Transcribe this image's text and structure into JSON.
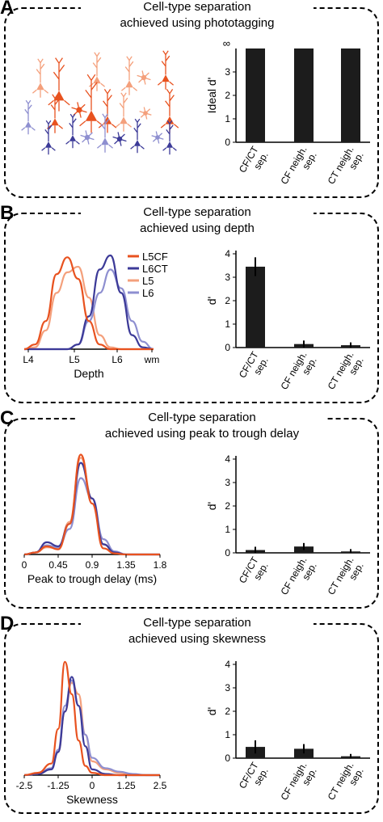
{
  "colors": {
    "L5CF": "#e8521f",
    "L6CT": "#3c3a98",
    "L5": "#f4a07c",
    "L6": "#8e8fd0",
    "bar": "#1c1c1c"
  },
  "panels": [
    {
      "letter": "A",
      "title_line1": "Cell-type separation",
      "title_line2": "achieved using phototagging",
      "left": {
        "kind": "illustration"
      },
      "bar_chart": {
        "ylabel": "Ideal d'",
        "ylim": [
          0,
          4
        ],
        "yticks": [
          "0",
          "1",
          "2",
          "3"
        ],
        "top_tick": "∞",
        "categories": [
          [
            "CF/CT",
            "sep."
          ],
          [
            "CF neigh.",
            "sep."
          ],
          [
            "CT neigh.",
            "sep."
          ]
        ],
        "values": [
          4,
          4,
          4
        ],
        "errors": [
          0,
          0,
          0
        ]
      }
    },
    {
      "letter": "B",
      "title_line1": "Cell-type separation",
      "title_line2": "achieved using depth",
      "left": {
        "kind": "density",
        "xlabel": "Depth",
        "ticks": [
          "L4",
          "L5",
          "L6",
          "wm"
        ],
        "legend": [
          "L5CF",
          "L6CT",
          "L5",
          "L6"
        ]
      },
      "bar_chart": {
        "ylabel": "d'",
        "ylim": [
          0,
          4
        ],
        "yticks": [
          "0",
          "1",
          "2",
          "3",
          "4"
        ],
        "categories": [
          [
            "CF/CT",
            "sep."
          ],
          [
            "CF neigh.",
            "sep."
          ],
          [
            "CT neigh.",
            "sep."
          ]
        ],
        "values": [
          3.45,
          0.15,
          0.1
        ],
        "errors": [
          0.4,
          0.15,
          0.12
        ]
      }
    },
    {
      "letter": "C",
      "title_line1": "Cell-type separation",
      "title_line2": "achieved using peak to trough delay",
      "left": {
        "kind": "density",
        "xlabel": "Peak to trough delay (ms)",
        "ticks": [
          "0",
          "0.45",
          "0.9",
          "1.35",
          "1.8"
        ]
      },
      "bar_chart": {
        "ylabel": "d'",
        "ylim": [
          0,
          4
        ],
        "yticks": [
          "0",
          "1",
          "2",
          "3",
          "4"
        ],
        "categories": [
          [
            "CF/CT",
            "sep."
          ],
          [
            "CF neigh.",
            "sep."
          ],
          [
            "CT neigh.",
            "sep."
          ]
        ],
        "values": [
          0.12,
          0.27,
          0.06
        ],
        "errors": [
          0.14,
          0.15,
          0.1
        ]
      }
    },
    {
      "letter": "D",
      "title_line1": "Cell-type separation",
      "title_line2": "achieved using skewness",
      "left": {
        "kind": "density",
        "xlabel": "Skewness",
        "ticks": [
          "-2.5",
          "-1.25",
          "0",
          "1.25",
          "2.5"
        ]
      },
      "bar_chart": {
        "ylabel": "d'",
        "ylim": [
          0,
          4
        ],
        "yticks": [
          "0",
          "1",
          "2",
          "3",
          "4"
        ],
        "categories": [
          [
            "CF/CT",
            "sep."
          ],
          [
            "CF neigh.",
            "sep."
          ],
          [
            "CT neigh.",
            "sep."
          ]
        ],
        "values": [
          0.48,
          0.4,
          0.08
        ],
        "errors": [
          0.28,
          0.2,
          0.1
        ]
      }
    }
  ],
  "chart_data": [
    {
      "type": "bar",
      "panel": "A",
      "title": "Cell-type separation achieved using phototagging",
      "ylabel": "Ideal d'",
      "categories": [
        "CF/CT sep.",
        "CF neigh. sep.",
        "CT neigh. sep."
      ],
      "values": [
        "∞",
        "∞",
        "∞"
      ]
    },
    {
      "type": "line",
      "panel": "B",
      "title": "Cell-type separation achieved using depth",
      "xlabel": "Depth",
      "x_ticks": [
        "L4",
        "L5",
        "L6",
        "wm"
      ],
      "x": [
        0,
        0.25,
        0.5,
        0.75,
        1.0,
        1.25,
        1.5,
        1.75,
        2.0,
        2.25,
        2.5,
        2.75,
        3.0
      ],
      "series": [
        {
          "name": "L5CF",
          "values": [
            0,
            0.05,
            0.3,
            0.8,
            0.98,
            0.75,
            0.3,
            0.05,
            0,
            0,
            0,
            0,
            0
          ]
        },
        {
          "name": "L6CT",
          "values": [
            0,
            0,
            0,
            0,
            0,
            0.05,
            0.35,
            0.85,
            1.0,
            0.6,
            0.15,
            0.02,
            0
          ]
        },
        {
          "name": "L5",
          "values": [
            0,
            0.02,
            0.2,
            0.6,
            0.82,
            0.88,
            0.55,
            0.15,
            0.02,
            0,
            0,
            0,
            0
          ]
        },
        {
          "name": "L6",
          "values": [
            0,
            0,
            0,
            0,
            0,
            0.05,
            0.3,
            0.6,
            0.85,
            0.65,
            0.3,
            0.08,
            0
          ]
        }
      ]
    },
    {
      "type": "bar",
      "panel": "B",
      "ylabel": "d'",
      "ylim": [
        0,
        4
      ],
      "categories": [
        "CF/CT sep.",
        "CF neigh. sep.",
        "CT neigh. sep."
      ],
      "values": [
        3.45,
        0.15,
        0.1
      ]
    },
    {
      "type": "line",
      "panel": "C",
      "title": "Cell-type separation achieved using peak to trough delay",
      "xlabel": "Peak to trough delay (ms)",
      "x": [
        0,
        0.15,
        0.3,
        0.45,
        0.6,
        0.75,
        0.9,
        1.05,
        1.2,
        1.35,
        1.5,
        1.65,
        1.8
      ],
      "series": [
        {
          "name": "L5CF",
          "values": [
            0,
            0.02,
            0.08,
            0.05,
            0.3,
            0.98,
            0.5,
            0.06,
            0.01,
            0,
            0,
            0,
            0
          ]
        },
        {
          "name": "L6CT",
          "values": [
            0,
            0.02,
            0.12,
            0.08,
            0.3,
            0.9,
            0.55,
            0.1,
            0.02,
            0,
            0,
            0,
            0
          ]
        },
        {
          "name": "L5",
          "values": [
            0,
            0.02,
            0.07,
            0.06,
            0.32,
            0.95,
            0.55,
            0.1,
            0.02,
            0,
            0,
            0,
            0
          ]
        },
        {
          "name": "L6",
          "values": [
            0,
            0.02,
            0.09,
            0.07,
            0.25,
            0.75,
            0.55,
            0.15,
            0.03,
            0,
            0,
            0,
            0
          ]
        }
      ]
    },
    {
      "type": "bar",
      "panel": "C",
      "ylabel": "d'",
      "ylim": [
        0,
        4
      ],
      "categories": [
        "CF/CT sep.",
        "CF neigh. sep.",
        "CT neigh. sep."
      ],
      "values": [
        0.12,
        0.27,
        0.06
      ]
    },
    {
      "type": "line",
      "panel": "D",
      "title": "Cell-type separation achieved using skewness",
      "xlabel": "Skewness",
      "x": [
        -2.5,
        -2.0,
        -1.5,
        -1.25,
        -1.0,
        -0.75,
        -0.5,
        -0.25,
        0,
        0.5,
        1.0,
        1.5,
        2.0,
        2.5
      ],
      "series": [
        {
          "name": "L5CF",
          "values": [
            0,
            0.02,
            0.1,
            0.4,
            0.98,
            0.7,
            0.3,
            0.08,
            0.02,
            0,
            0,
            0,
            0,
            0
          ]
        },
        {
          "name": "L6CT",
          "values": [
            0,
            0.01,
            0.05,
            0.2,
            0.55,
            0.85,
            0.6,
            0.25,
            0.05,
            0.01,
            0,
            0,
            0,
            0
          ]
        },
        {
          "name": "L5",
          "values": [
            0,
            0.01,
            0.06,
            0.2,
            0.55,
            0.8,
            0.7,
            0.35,
            0.12,
            0.05,
            0.02,
            0,
            0,
            0
          ]
        },
        {
          "name": "L6",
          "values": [
            0,
            0.01,
            0.06,
            0.22,
            0.6,
            0.82,
            0.6,
            0.35,
            0.15,
            0.06,
            0.03,
            0.01,
            0,
            0
          ]
        }
      ]
    },
    {
      "type": "bar",
      "panel": "D",
      "ylabel": "d'",
      "ylim": [
        0,
        4
      ],
      "categories": [
        "CF/CT sep.",
        "CF neigh. sep.",
        "CT neigh. sep."
      ],
      "values": [
        0.48,
        0.4,
        0.08
      ]
    }
  ]
}
